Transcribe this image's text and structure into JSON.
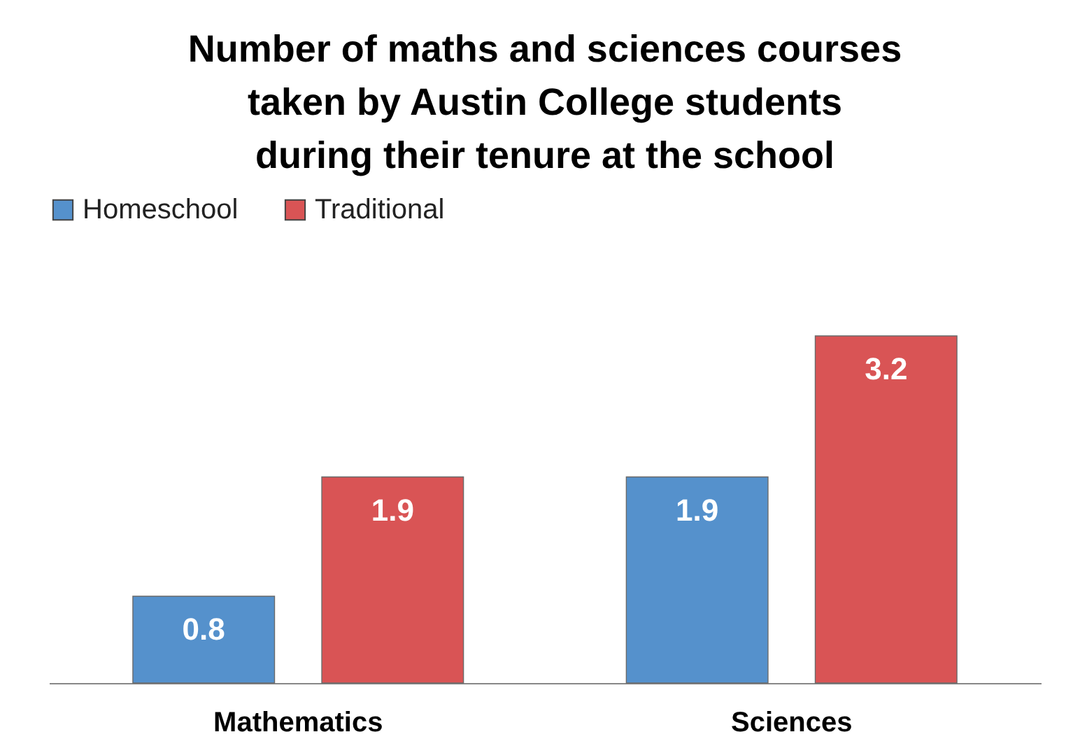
{
  "chart_data": {
    "type": "bar",
    "title": "Number of maths and sciences courses\ntaken by Austin College students\nduring their tenure at the school",
    "categories": [
      "Mathematics",
      "Sciences"
    ],
    "series": [
      {
        "name": "Homeschool",
        "color": "#5591cc",
        "values": [
          0.8,
          1.9
        ]
      },
      {
        "name": "Traditional",
        "color": "#d95455",
        "values": [
          1.9,
          3.2
        ]
      }
    ],
    "data_labels": true,
    "legend": "top",
    "grid": false
  }
}
